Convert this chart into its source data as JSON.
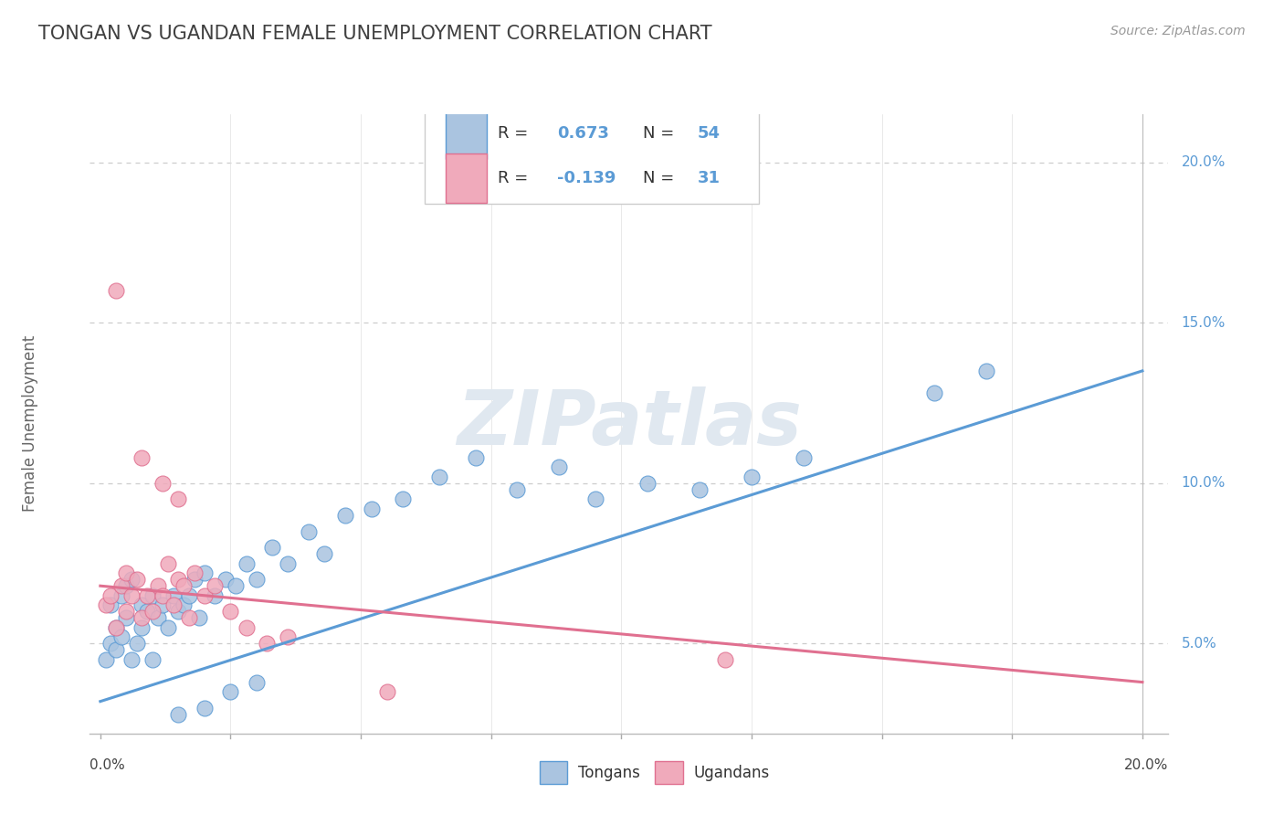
{
  "title": "TONGAN VS UGANDAN FEMALE UNEMPLOYMENT CORRELATION CHART",
  "source": "Source: ZipAtlas.com",
  "ylabel": "Female Unemployment",
  "tongan_R": 0.673,
  "tongan_N": 54,
  "ugandan_R": -0.139,
  "ugandan_N": 31,
  "tongan_color": "#aac4e0",
  "ugandan_color": "#f0aabb",
  "tongan_line_color": "#5b9bd5",
  "ugandan_line_color": "#e07090",
  "watermark": "ZIPatlas",
  "background_color": "#ffffff",
  "tongan_trendline_x": [
    0.0,
    0.2
  ],
  "tongan_trendline_y": [
    0.032,
    0.135
  ],
  "ugandan_trendline_x": [
    0.0,
    0.2
  ],
  "ugandan_trendline_y": [
    0.068,
    0.038
  ],
  "xlim": [
    -0.002,
    0.205
  ],
  "ylim": [
    0.022,
    0.215
  ],
  "right_ytick_vals": [
    0.05,
    0.1,
    0.15,
    0.2
  ],
  "right_ytick_labels": [
    "5.0%",
    "10.0%",
    "15.0%",
    "20.0%"
  ],
  "grid_color": "#cccccc",
  "title_color": "#404040",
  "legend_border_color": "#cccccc",
  "tick_color": "#888888",
  "tongan_scatter_x": [
    0.001,
    0.002,
    0.002,
    0.003,
    0.003,
    0.004,
    0.004,
    0.005,
    0.005,
    0.006,
    0.006,
    0.007,
    0.008,
    0.008,
    0.009,
    0.01,
    0.01,
    0.011,
    0.012,
    0.013,
    0.014,
    0.015,
    0.016,
    0.017,
    0.018,
    0.019,
    0.02,
    0.022,
    0.024,
    0.026,
    0.028,
    0.03,
    0.033,
    0.036,
    0.04,
    0.043,
    0.047,
    0.052,
    0.058,
    0.065,
    0.072,
    0.08,
    0.088,
    0.095,
    0.105,
    0.115,
    0.125,
    0.135,
    0.03,
    0.025,
    0.02,
    0.015,
    0.16,
    0.17
  ],
  "tongan_scatter_y": [
    0.045,
    0.05,
    0.062,
    0.048,
    0.055,
    0.052,
    0.065,
    0.058,
    0.068,
    0.045,
    0.07,
    0.05,
    0.055,
    0.062,
    0.06,
    0.045,
    0.065,
    0.058,
    0.062,
    0.055,
    0.065,
    0.06,
    0.062,
    0.065,
    0.07,
    0.058,
    0.072,
    0.065,
    0.07,
    0.068,
    0.075,
    0.07,
    0.08,
    0.075,
    0.085,
    0.078,
    0.09,
    0.092,
    0.095,
    0.102,
    0.108,
    0.098,
    0.105,
    0.095,
    0.1,
    0.098,
    0.102,
    0.108,
    0.038,
    0.035,
    0.03,
    0.028,
    0.128,
    0.135
  ],
  "ugandan_scatter_x": [
    0.001,
    0.002,
    0.003,
    0.004,
    0.005,
    0.005,
    0.006,
    0.007,
    0.008,
    0.009,
    0.01,
    0.011,
    0.012,
    0.013,
    0.014,
    0.015,
    0.016,
    0.017,
    0.018,
    0.02,
    0.022,
    0.025,
    0.028,
    0.032,
    0.036,
    0.015,
    0.012,
    0.008,
    0.12,
    0.055,
    0.003
  ],
  "ugandan_scatter_y": [
    0.062,
    0.065,
    0.055,
    0.068,
    0.06,
    0.072,
    0.065,
    0.07,
    0.058,
    0.065,
    0.06,
    0.068,
    0.065,
    0.075,
    0.062,
    0.07,
    0.068,
    0.058,
    0.072,
    0.065,
    0.068,
    0.06,
    0.055,
    0.05,
    0.052,
    0.095,
    0.1,
    0.108,
    0.045,
    0.035,
    0.16
  ]
}
